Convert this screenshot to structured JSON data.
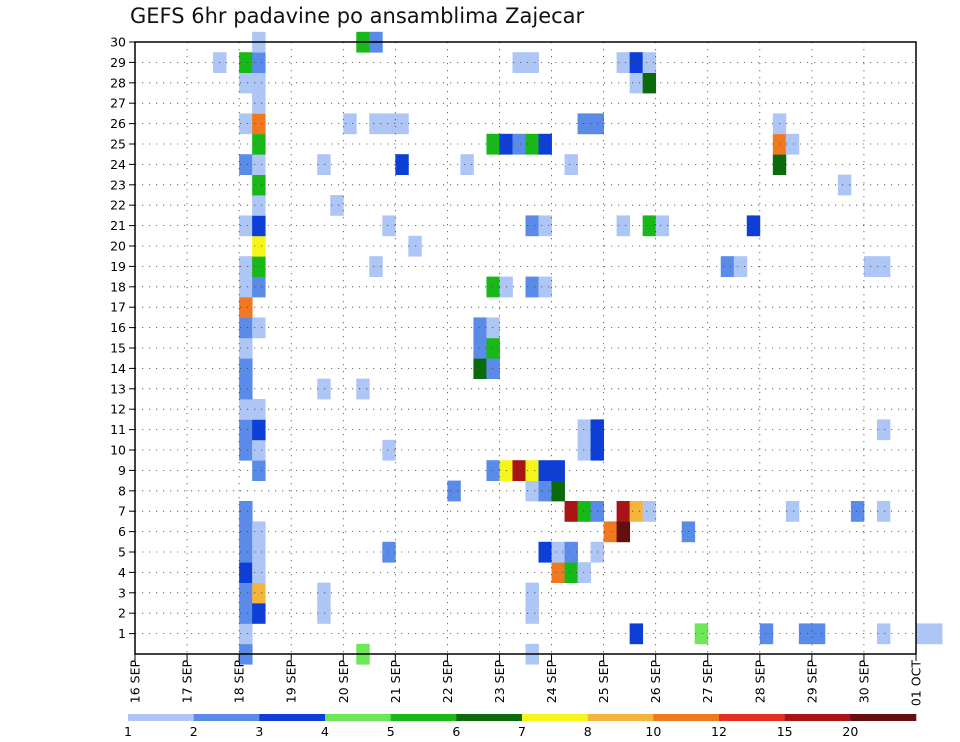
{
  "chart_data": {
    "type": "heatmap",
    "title": "GEFS 6hr padavine po ansamblima Zajecar",
    "x_ticks": [
      "16 SEP",
      "17 SEP",
      "18 SEP",
      "19 SEP",
      "20 SEP",
      "21 SEP",
      "22 SEP",
      "23 SEP",
      "24 SEP",
      "25 SEP",
      "26 SEP",
      "27 SEP",
      "28 SEP",
      "29 SEP",
      "30 SEP",
      "01 OCT"
    ],
    "y_ticks": [
      1,
      2,
      3,
      4,
      5,
      6,
      7,
      8,
      9,
      10,
      11,
      12,
      13,
      14,
      15,
      16,
      17,
      18,
      19,
      20,
      21,
      22,
      23,
      24,
      25,
      26,
      27,
      28,
      29,
      30
    ],
    "ylim": [
      0,
      30
    ],
    "x_step_hours": 6,
    "legend": {
      "labels": [
        "1",
        "2",
        "3",
        "4",
        "5",
        "6",
        "7",
        "8",
        "10",
        "12",
        "15",
        "20"
      ],
      "colors": [
        "#aec6f5",
        "#5a8be8",
        "#0d3fd6",
        "#6de658",
        "#18b818",
        "#0b6b0b",
        "#f5f51a",
        "#f5b43a",
        "#f0781e",
        "#e0321e",
        "#aa1414",
        "#641010"
      ]
    },
    "grid": true,
    "cells": [
      [
        8,
        0,
        2
      ],
      [
        17,
        0,
        4
      ],
      [
        30,
        0,
        1
      ],
      [
        8,
        1,
        1
      ],
      [
        38,
        1,
        3
      ],
      [
        43,
        1,
        4
      ],
      [
        48,
        1,
        2
      ],
      [
        51,
        1,
        2
      ],
      [
        52,
        1,
        2
      ],
      [
        57,
        1,
        1
      ],
      [
        60,
        1,
        1
      ],
      [
        61,
        1,
        1
      ],
      [
        8,
        2,
        2
      ],
      [
        9,
        2,
        3
      ],
      [
        14,
        2,
        1
      ],
      [
        30,
        2,
        1
      ],
      [
        8,
        3,
        2
      ],
      [
        9,
        3,
        8
      ],
      [
        14,
        3,
        1
      ],
      [
        30,
        3,
        1
      ],
      [
        8,
        4,
        3
      ],
      [
        9,
        4,
        1
      ],
      [
        32,
        4,
        10
      ],
      [
        33,
        4,
        5
      ],
      [
        34,
        4,
        1
      ],
      [
        8,
        5,
        2
      ],
      [
        9,
        5,
        1
      ],
      [
        19,
        5,
        2
      ],
      [
        31,
        5,
        3
      ],
      [
        32,
        5,
        1
      ],
      [
        33,
        5,
        2
      ],
      [
        35,
        5,
        1
      ],
      [
        8,
        6,
        2
      ],
      [
        9,
        6,
        1
      ],
      [
        36,
        6,
        10
      ],
      [
        37,
        6,
        20
      ],
      [
        42,
        6,
        2
      ],
      [
        8,
        7,
        2
      ],
      [
        33,
        7,
        15
      ],
      [
        34,
        7,
        5
      ],
      [
        35,
        7,
        2
      ],
      [
        37,
        7,
        15
      ],
      [
        38,
        7,
        8
      ],
      [
        39,
        7,
        1
      ],
      [
        50,
        7,
        1
      ],
      [
        55,
        7,
        2
      ],
      [
        57,
        7,
        1
      ],
      [
        24,
        8,
        2
      ],
      [
        30,
        8,
        1
      ],
      [
        31,
        8,
        2
      ],
      [
        32,
        8,
        6
      ],
      [
        9,
        9,
        2
      ],
      [
        27,
        9,
        2
      ],
      [
        28,
        9,
        7
      ],
      [
        29,
        9,
        15
      ],
      [
        30,
        9,
        7
      ],
      [
        31,
        9,
        3
      ],
      [
        32,
        9,
        3
      ],
      [
        8,
        10,
        2
      ],
      [
        9,
        10,
        1
      ],
      [
        19,
        10,
        1
      ],
      [
        34,
        10,
        1
      ],
      [
        35,
        10,
        3
      ],
      [
        8,
        11,
        2
      ],
      [
        9,
        11,
        3
      ],
      [
        34,
        11,
        1
      ],
      [
        35,
        11,
        3
      ],
      [
        57,
        11,
        1
      ],
      [
        8,
        12,
        1
      ],
      [
        9,
        12,
        1
      ],
      [
        8,
        13,
        2
      ],
      [
        14,
        13,
        1
      ],
      [
        17,
        13,
        1
      ],
      [
        8,
        14,
        2
      ],
      [
        26,
        14,
        6
      ],
      [
        27,
        14,
        2
      ],
      [
        8,
        15,
        1
      ],
      [
        26,
        15,
        2
      ],
      [
        27,
        15,
        5
      ],
      [
        8,
        16,
        2
      ],
      [
        9,
        16,
        1
      ],
      [
        26,
        16,
        2
      ],
      [
        27,
        16,
        1
      ],
      [
        8,
        17,
        10
      ],
      [
        8,
        18,
        1
      ],
      [
        9,
        18,
        2
      ],
      [
        27,
        18,
        5
      ],
      [
        28,
        18,
        1
      ],
      [
        30,
        18,
        2
      ],
      [
        31,
        18,
        1
      ],
      [
        8,
        19,
        1
      ],
      [
        9,
        19,
        5
      ],
      [
        18,
        19,
        1
      ],
      [
        45,
        19,
        2
      ],
      [
        46,
        19,
        1
      ],
      [
        56,
        19,
        1
      ],
      [
        57,
        19,
        1
      ],
      [
        9,
        20,
        7
      ],
      [
        21,
        20,
        1
      ],
      [
        8,
        21,
        1
      ],
      [
        9,
        21,
        3
      ],
      [
        19,
        21,
        1
      ],
      [
        30,
        21,
        2
      ],
      [
        31,
        21,
        1
      ],
      [
        37,
        21,
        1
      ],
      [
        39,
        21,
        5
      ],
      [
        40,
        21,
        1
      ],
      [
        47,
        21,
        3
      ],
      [
        9,
        22,
        1
      ],
      [
        15,
        22,
        1
      ],
      [
        9,
        23,
        5
      ],
      [
        54,
        23,
        1
      ],
      [
        8,
        24,
        2
      ],
      [
        9,
        24,
        1
      ],
      [
        14,
        24,
        1
      ],
      [
        20,
        24,
        3
      ],
      [
        25,
        24,
        1
      ],
      [
        33,
        24,
        1
      ],
      [
        49,
        24,
        6
      ],
      [
        9,
        25,
        5
      ],
      [
        27,
        25,
        5
      ],
      [
        28,
        25,
        3
      ],
      [
        29,
        25,
        2
      ],
      [
        30,
        25,
        5
      ],
      [
        31,
        25,
        3
      ],
      [
        49,
        25,
        10
      ],
      [
        50,
        25,
        1
      ],
      [
        8,
        26,
        1
      ],
      [
        9,
        26,
        10
      ],
      [
        16,
        26,
        1
      ],
      [
        18,
        26,
        1
      ],
      [
        19,
        26,
        1
      ],
      [
        20,
        26,
        1
      ],
      [
        34,
        26,
        2
      ],
      [
        35,
        26,
        2
      ],
      [
        49,
        26,
        1
      ],
      [
        9,
        27,
        1
      ],
      [
        8,
        28,
        1
      ],
      [
        9,
        28,
        1
      ],
      [
        38,
        28,
        1
      ],
      [
        39,
        28,
        6
      ],
      [
        6,
        29,
        1
      ],
      [
        8,
        29,
        5
      ],
      [
        9,
        29,
        2
      ],
      [
        29,
        29,
        1
      ],
      [
        30,
        29,
        1
      ],
      [
        37,
        29,
        1
      ],
      [
        38,
        29,
        3
      ],
      [
        39,
        29,
        1
      ],
      [
        9,
        30,
        1
      ],
      [
        17,
        30,
        5
      ],
      [
        18,
        30,
        2
      ]
    ]
  }
}
